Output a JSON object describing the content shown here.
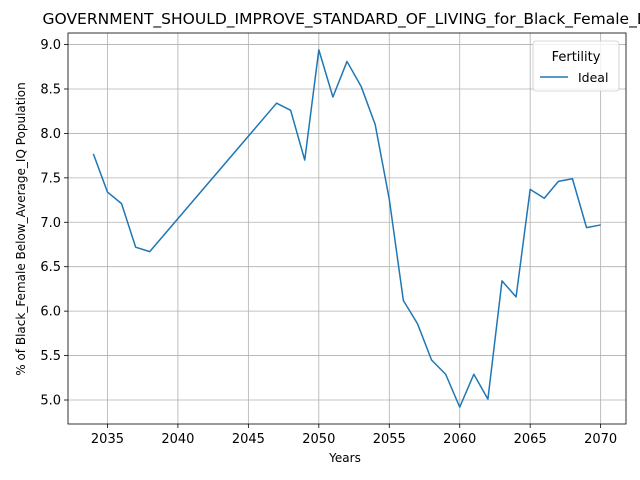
{
  "chart_data": {
    "type": "line",
    "title": "GOVERNMENT_SHOULD_IMPROVE_STANDARD_OF_LIVING_for_Black_Female_B",
    "xlabel": "Years",
    "ylabel": "% of Black_Female Below_Average_IQ Population",
    "xlim": [
      2032.2,
      2071.8
    ],
    "ylim": [
      4.73,
      9.13
    ],
    "x_ticks": [
      2035,
      2040,
      2045,
      2050,
      2055,
      2060,
      2065,
      2070
    ],
    "y_ticks": [
      5.0,
      5.5,
      6.0,
      6.5,
      7.0,
      7.5,
      8.0,
      8.5,
      9.0
    ],
    "grid": true,
    "legend": {
      "title": "Fertility",
      "placement": "top-right"
    },
    "series": [
      {
        "name": "Ideal",
        "color": "#1f77b4",
        "x": [
          2034,
          2035,
          2036,
          2037,
          2038,
          2047,
          2048,
          2049,
          2050,
          2051,
          2052,
          2053,
          2054,
          2055,
          2056,
          2057,
          2058,
          2059,
          2060,
          2061,
          2062,
          2063,
          2064,
          2065,
          2066,
          2067,
          2068,
          2069,
          2070
        ],
        "y": [
          7.77,
          7.34,
          7.21,
          6.72,
          6.67,
          8.34,
          8.26,
          7.7,
          8.94,
          8.41,
          8.81,
          8.53,
          8.1,
          7.26,
          6.12,
          5.86,
          5.45,
          5.29,
          4.92,
          5.29,
          5.01,
          6.34,
          6.16,
          7.37,
          7.27,
          7.46,
          7.49,
          6.94,
          6.97
        ]
      }
    ]
  }
}
